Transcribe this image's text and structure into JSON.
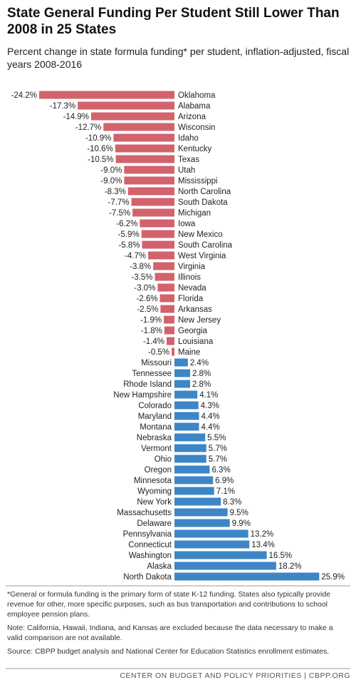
{
  "chart_data": {
    "type": "bar",
    "orientation": "horizontal",
    "title": "State General Funding Per Student Still Lower Than 2008 in 25 States",
    "subtitle": "Percent change in state formula funding* per student, inflation-adjusted, fiscal years 2008-2016",
    "categories": [
      "Oklahoma",
      "Alabama",
      "Arizona",
      "Wisconsin",
      "Idaho",
      "Kentucky",
      "Texas",
      "Utah",
      "Mississippi",
      "North Carolina",
      "South Dakota",
      "Michigan",
      "Iowa",
      "New Mexico",
      "South Carolina",
      "West Virginia",
      "Virginia",
      "Illinois",
      "Nevada",
      "Florida",
      "Arkansas",
      "New Jersey",
      "Georgia",
      "Louisiana",
      "Maine",
      "Missouri",
      "Tennessee",
      "Rhode Island",
      "New Hampshire",
      "Colorado",
      "Maryland",
      "Montana",
      "Nebraska",
      "Vermont",
      "Ohio",
      "Oregon",
      "Minnesota",
      "Wyoming",
      "New York",
      "Massachusetts",
      "Delaware",
      "Pennsylvania",
      "Connecticut",
      "Washington",
      "Alaska",
      "North Dakota"
    ],
    "values": [
      -24.2,
      -17.3,
      -14.9,
      -12.7,
      -10.9,
      -10.6,
      -10.5,
      -9.0,
      -9.0,
      -8.3,
      -7.7,
      -7.5,
      -6.2,
      -5.9,
      -5.8,
      -4.7,
      -3.8,
      -3.5,
      -3.0,
      -2.6,
      -2.5,
      -1.9,
      -1.8,
      -1.4,
      -0.5,
      2.4,
      2.8,
      2.8,
      4.1,
      4.3,
      4.4,
      4.4,
      5.5,
      5.7,
      5.7,
      6.3,
      6.9,
      7.1,
      8.3,
      9.5,
      9.9,
      13.2,
      13.4,
      16.5,
      18.2,
      25.9
    ],
    "value_labels": [
      "-24.2%",
      "-17.3%",
      "-14.9%",
      "-12.7%",
      "-10.9%",
      "-10.6%",
      "-10.5%",
      "-9.0%",
      "-9.0%",
      "-8.3%",
      "-7.7%",
      "-7.5%",
      "-6.2%",
      "-5.9%",
      "-5.8%",
      "-4.7%",
      "-3.8%",
      "-3.5%",
      "-3.0%",
      "-2.6%",
      "-2.5%",
      "-1.9%",
      "-1.8%",
      "-1.4%",
      "-0.5%",
      "2.4%",
      "2.8%",
      "2.8%",
      "4.1%",
      "4.3%",
      "4.4%",
      "4.4%",
      "5.5%",
      "5.7%",
      "5.7%",
      "6.3%",
      "6.9%",
      "7.1%",
      "8.3%",
      "9.5%",
      "9.9%",
      "13.2%",
      "13.4%",
      "16.5%",
      "18.2%",
      "25.9%"
    ],
    "colors": {
      "negative": "#d2636d",
      "positive": "#3d86c5"
    },
    "notes": [
      "*General or formula funding is the primary form of state K-12 funding.  States also typically provide revenue for other, more specific purposes, such as bus transportation and contributions to school employee pension plans.",
      "Note: California, Hawaii, Indiana, and Kansas are excluded because the data necessary to make a valid comparison are not available.",
      "Source: CBPP budget analysis and National Center for Education Statistics enrollment estimates."
    ],
    "footer": "CENTER ON BUDGET AND POLICY PRIORITIES | CBPP.ORG"
  }
}
